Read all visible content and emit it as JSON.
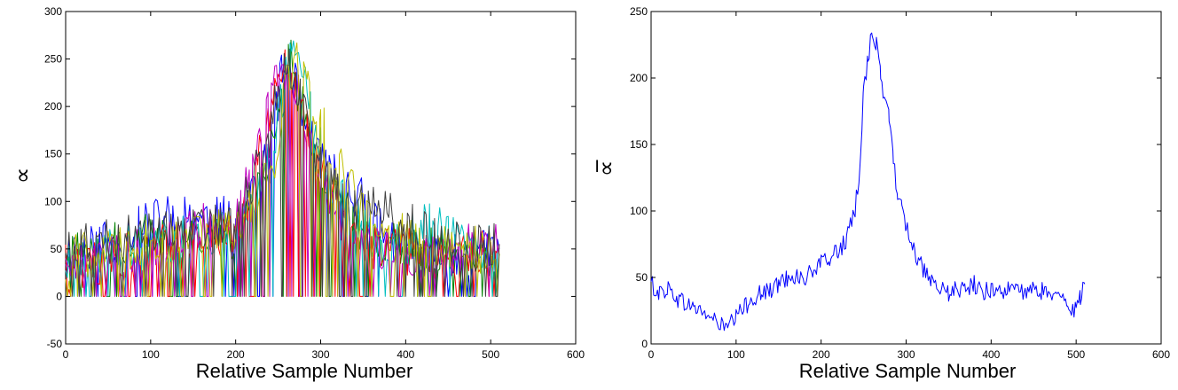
{
  "chart_data": [
    {
      "type": "line",
      "xlabel": "Relative Sample Number",
      "ylabel": "∝",
      "xlim": [
        0,
        600
      ],
      "ylim": [
        -50,
        300
      ],
      "xticks": [
        "0",
        "100",
        "200",
        "300",
        "400",
        "500",
        "600"
      ],
      "yticks": [
        "-50",
        "0",
        "50",
        "100",
        "150",
        "200",
        "250",
        "300"
      ],
      "grid": false,
      "series": [
        {
          "color": "#0000ff",
          "x": [
            0,
            60,
            120,
            200,
            240,
            255,
            262,
            270,
            290,
            320,
            350,
            380,
            420,
            460,
            510
          ],
          "y": [
            45,
            60,
            85,
            80,
            150,
            238,
            240,
            230,
            160,
            120,
            100,
            60,
            45,
            40,
            50
          ]
        },
        {
          "color": "#008000",
          "x": [
            0,
            60,
            120,
            200,
            240,
            258,
            265,
            275,
            300,
            330,
            360,
            400,
            450,
            510
          ],
          "y": [
            40,
            55,
            70,
            60,
            140,
            240,
            245,
            210,
            130,
            90,
            60,
            50,
            50,
            45
          ]
        },
        {
          "color": "#ff0000",
          "x": [
            0,
            60,
            120,
            200,
            240,
            250,
            258,
            268,
            295,
            330,
            370,
            420,
            470,
            510
          ],
          "y": [
            30,
            40,
            55,
            70,
            180,
            235,
            240,
            220,
            140,
            70,
            50,
            45,
            40,
            55
          ]
        },
        {
          "color": "#00bfbf",
          "x": [
            0,
            60,
            120,
            200,
            245,
            262,
            270,
            280,
            310,
            350,
            400,
            430,
            470,
            510
          ],
          "y": [
            35,
            50,
            60,
            65,
            160,
            245,
            248,
            225,
            120,
            70,
            55,
            85,
            60,
            50
          ]
        },
        {
          "color": "#bf00bf",
          "x": [
            0,
            60,
            120,
            200,
            230,
            250,
            260,
            275,
            300,
            340,
            390,
            440,
            490,
            510
          ],
          "y": [
            30,
            45,
            55,
            90,
            175,
            235,
            238,
            210,
            120,
            60,
            50,
            40,
            60,
            55
          ]
        },
        {
          "color": "#bfbf00",
          "x": [
            0,
            60,
            120,
            200,
            248,
            262,
            272,
            285,
            300,
            320,
            360,
            420,
            480,
            510
          ],
          "y": [
            40,
            50,
            60,
            70,
            150,
            240,
            243,
            230,
            185,
            140,
            80,
            55,
            50,
            45
          ]
        },
        {
          "color": "#404040",
          "x": [
            0,
            60,
            120,
            200,
            240,
            255,
            263,
            272,
            300,
            340,
            380,
            430,
            480,
            510
          ],
          "y": [
            50,
            60,
            65,
            75,
            170,
            245,
            248,
            220,
            135,
            95,
            90,
            60,
            50,
            55
          ]
        }
      ]
    },
    {
      "type": "line",
      "xlabel": "Relative Sample Number",
      "ylabel": "∝̅",
      "xlim": [
        0,
        600
      ],
      "ylim": [
        0,
        250
      ],
      "xticks": [
        "0",
        "100",
        "200",
        "300",
        "400",
        "500",
        "600"
      ],
      "yticks": [
        "0",
        "50",
        "100",
        "150",
        "200",
        "250"
      ],
      "grid": false,
      "series": [
        {
          "color": "#0000ff",
          "x": [
            0,
            10,
            20,
            30,
            40,
            50,
            60,
            70,
            80,
            90,
            100,
            110,
            120,
            130,
            140,
            150,
            160,
            170,
            180,
            190,
            200,
            210,
            220,
            230,
            240,
            245,
            250,
            255,
            260,
            265,
            270,
            275,
            280,
            285,
            290,
            295,
            300,
            310,
            320,
            330,
            340,
            350,
            360,
            370,
            380,
            390,
            400,
            410,
            420,
            430,
            440,
            450,
            460,
            470,
            480,
            490,
            500,
            505,
            510
          ],
          "y": [
            45,
            38,
            42,
            35,
            30,
            28,
            24,
            20,
            15,
            12,
            20,
            28,
            35,
            38,
            40,
            45,
            50,
            52,
            48,
            55,
            60,
            65,
            70,
            78,
            100,
            130,
            190,
            215,
            235,
            225,
            200,
            185,
            170,
            140,
            110,
            105,
            90,
            70,
            55,
            45,
            40,
            38,
            42,
            40,
            45,
            38,
            42,
            40,
            40,
            42,
            38,
            40,
            40,
            38,
            35,
            30,
            25,
            35,
            45
          ]
        }
      ]
    }
  ]
}
